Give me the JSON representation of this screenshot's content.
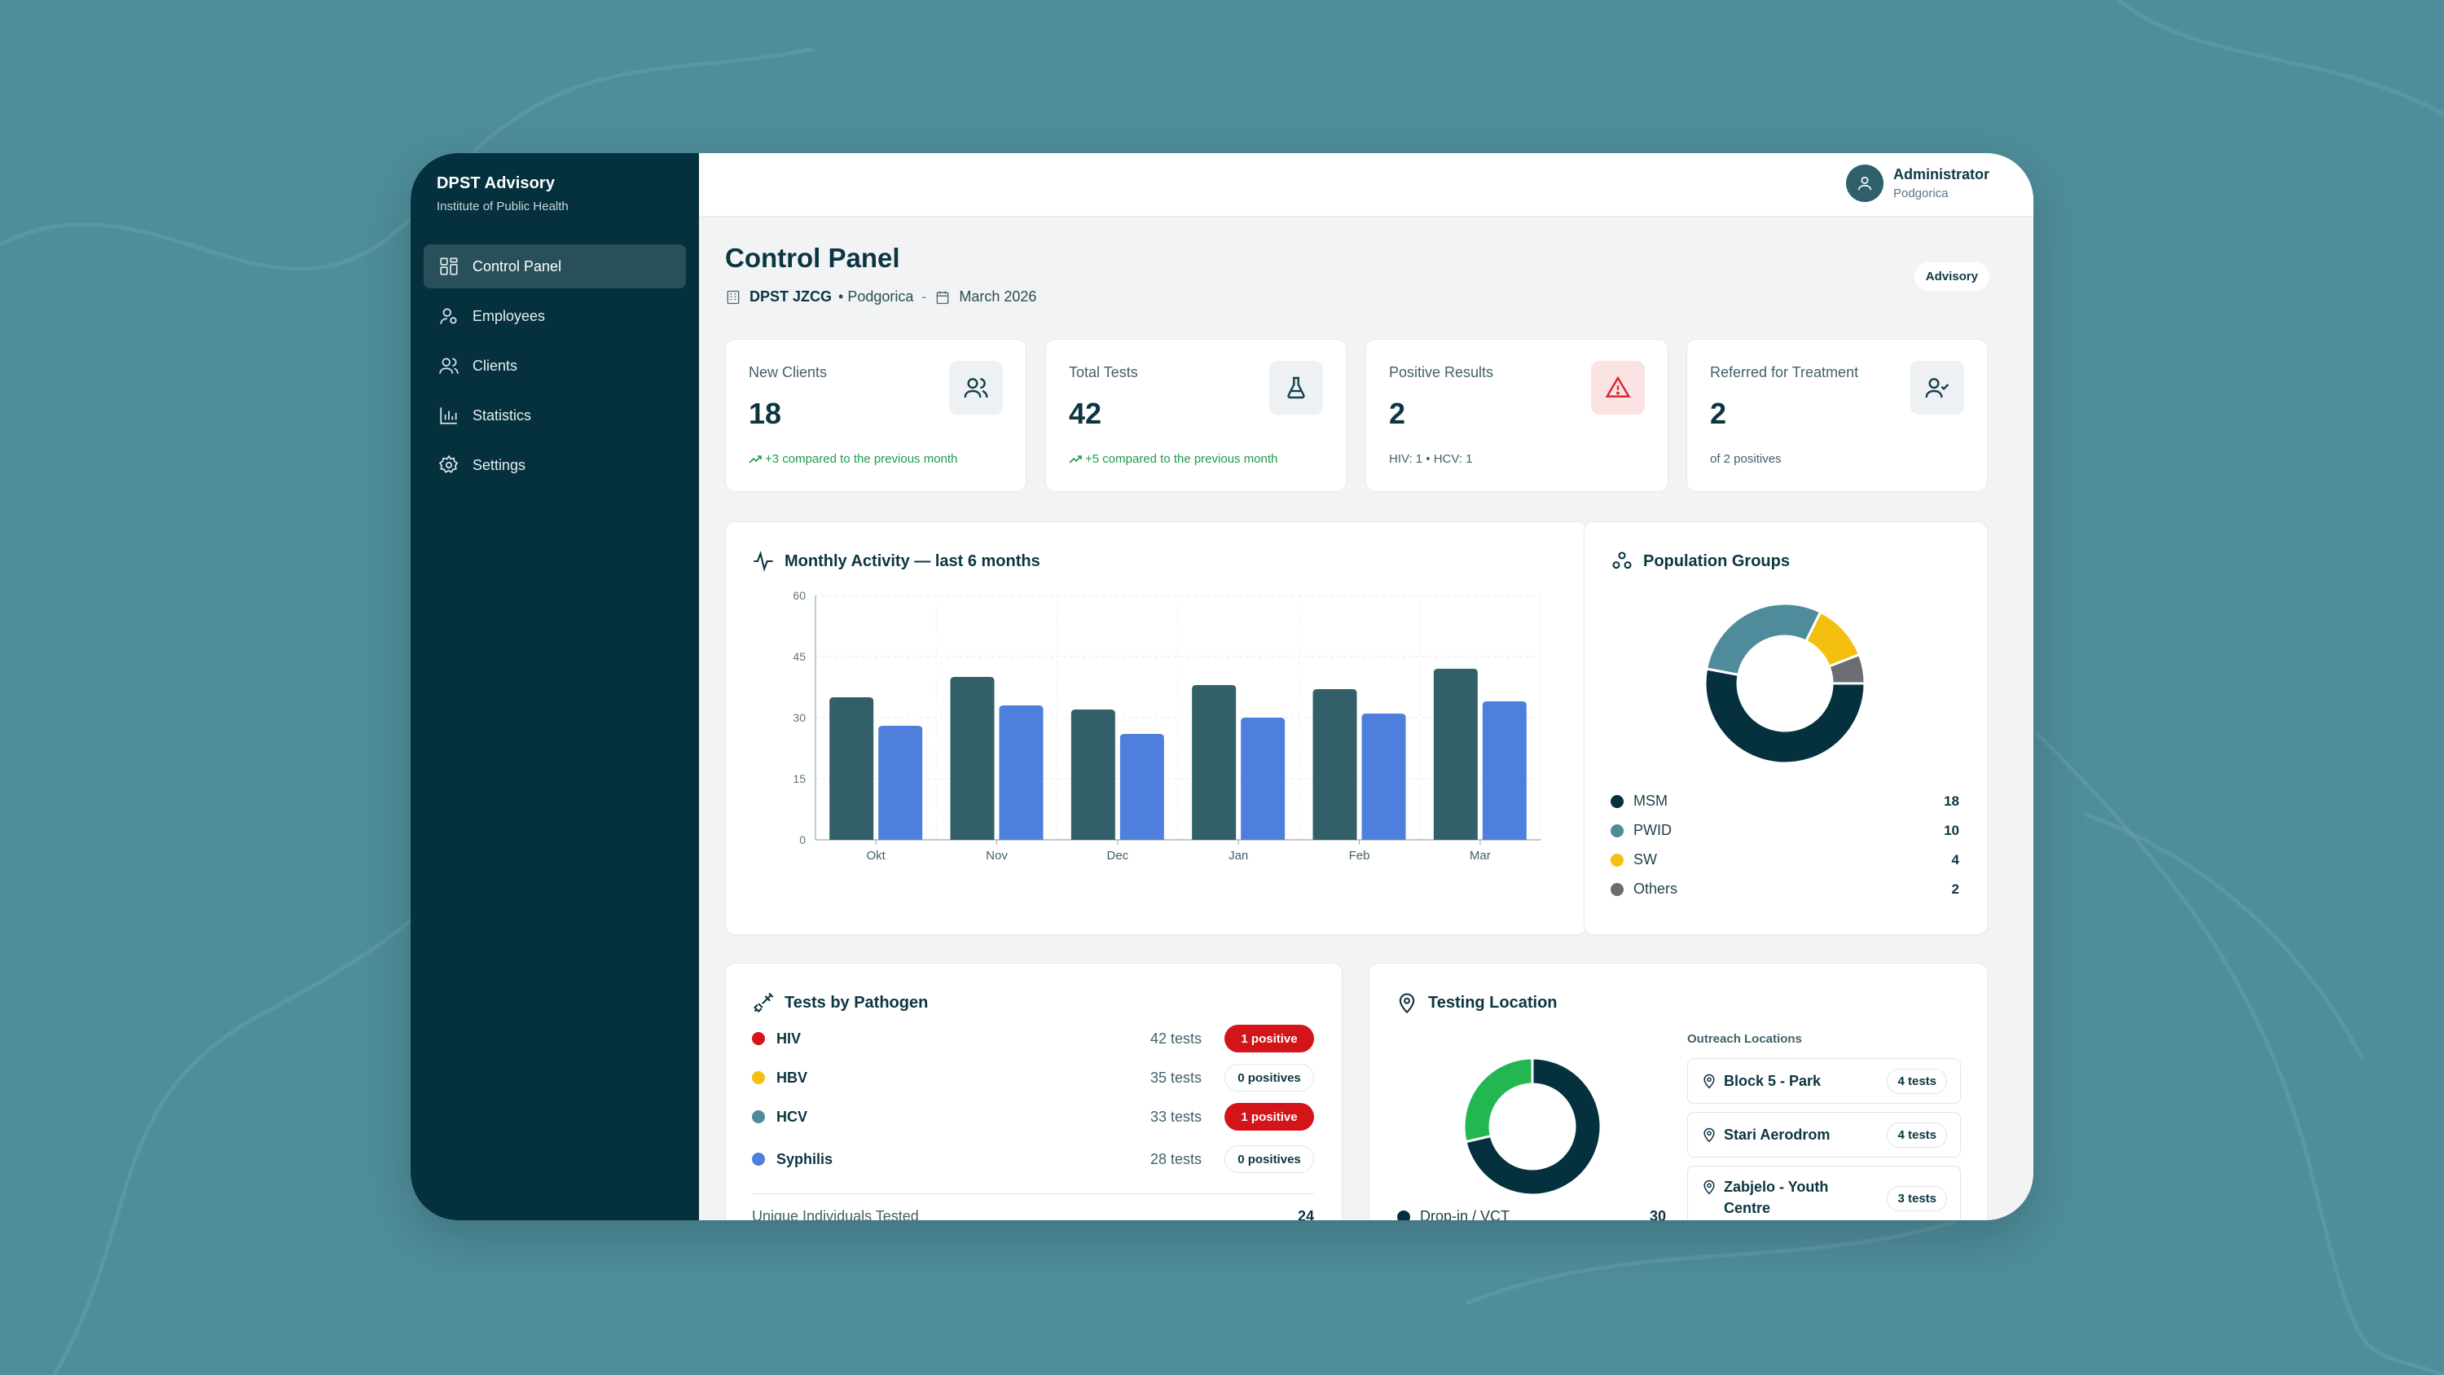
{
  "sidebar": {
    "brand_title": "DPST Advisory",
    "brand_subtitle": "Institute of Public Health",
    "items": [
      {
        "label": "Control Panel",
        "icon": "dashboard-icon",
        "active": true
      },
      {
        "label": "Employees",
        "icon": "user-badge-icon",
        "active": false
      },
      {
        "label": "Clients",
        "icon": "users-icon",
        "active": false
      },
      {
        "label": "Statistics",
        "icon": "bar-chart-icon",
        "active": false
      },
      {
        "label": "Settings",
        "icon": "gear-icon",
        "active": false
      }
    ]
  },
  "user": {
    "name": "Administrator",
    "city": "Podgorica"
  },
  "header": {
    "title": "Control Panel",
    "org": "DPST JZCG",
    "city": "• Podgorica",
    "separator": "-",
    "date": "March 2026",
    "role_badge": "Advisory"
  },
  "stats": [
    {
      "label": "New Clients",
      "value": "18",
      "note": "+3 compared to the previous month",
      "icon": "users-icon",
      "trend": "up"
    },
    {
      "label": "Total Tests",
      "value": "42",
      "note": "+5 compared to the previous month",
      "icon": "flask-icon",
      "trend": "up"
    },
    {
      "label": "Positive Results",
      "value": "2",
      "note": "HIV: 1 • HCV: 1",
      "icon": "alert-icon",
      "trend": "none"
    },
    {
      "label": "Referred for Treatment",
      "value": "2",
      "note": "of 2 positives",
      "icon": "user-check-icon",
      "trend": "none"
    }
  ],
  "activity": {
    "title": "Monthly Activity — last 6 months"
  },
  "chart_data": {
    "type": "bar",
    "categories": [
      "Okt",
      "Nov",
      "Dec",
      "Jan",
      "Feb",
      "Mar"
    ],
    "series": [
      {
        "color": "#335f69",
        "values": [
          35,
          40,
          32,
          38,
          37,
          42
        ]
      },
      {
        "color": "#4f7fdc",
        "values": [
          28,
          33,
          26,
          30,
          31,
          34
        ]
      }
    ],
    "ylim": [
      0,
      60
    ],
    "yticks": [
      0,
      15,
      30,
      45,
      60
    ],
    "grid": true
  },
  "population": {
    "title": "Population Groups",
    "groups": [
      {
        "name": "MSM",
        "value": 18,
        "color": "#05313f"
      },
      {
        "name": "PWID",
        "value": 10,
        "color": "#4e8c9b"
      },
      {
        "name": "SW",
        "value": 4,
        "color": "#f5bf0f"
      },
      {
        "name": "Others",
        "value": 2,
        "color": "#6b6e70"
      }
    ]
  },
  "pathogens": {
    "title": "Tests by Pathogen",
    "items": [
      {
        "name": "HIV",
        "color": "#d31419",
        "tests": "42 tests",
        "result": "1 positive",
        "positive": true
      },
      {
        "name": "HBV",
        "color": "#f5bf0f",
        "tests": "35 tests",
        "result": "0 positives",
        "positive": false
      },
      {
        "name": "HCV",
        "color": "#4e8c9b",
        "tests": "33 tests",
        "result": "1 positive",
        "positive": true
      },
      {
        "name": "Syphilis",
        "color": "#4f7fdc",
        "tests": "28 tests",
        "result": "0 positives",
        "positive": false
      }
    ],
    "footer_label": "Unique Individuals Tested",
    "footer_value": "24"
  },
  "location": {
    "title": "Testing Location",
    "donut": [
      {
        "name": "Drop-in / VCT",
        "value": 30,
        "color": "#05313f"
      },
      {
        "value": 12,
        "color": "#22b750"
      }
    ],
    "legend_label": "Drop-in / VCT",
    "legend_value": "30",
    "outreach_title": "Outreach Locations",
    "outreach": [
      {
        "name": "Block 5 - Park",
        "tests": "4 tests"
      },
      {
        "name": "Stari Aerodrom",
        "tests": "4 tests"
      },
      {
        "name": "Zabjelo - Youth Centre",
        "tests": "3 tests"
      }
    ]
  }
}
